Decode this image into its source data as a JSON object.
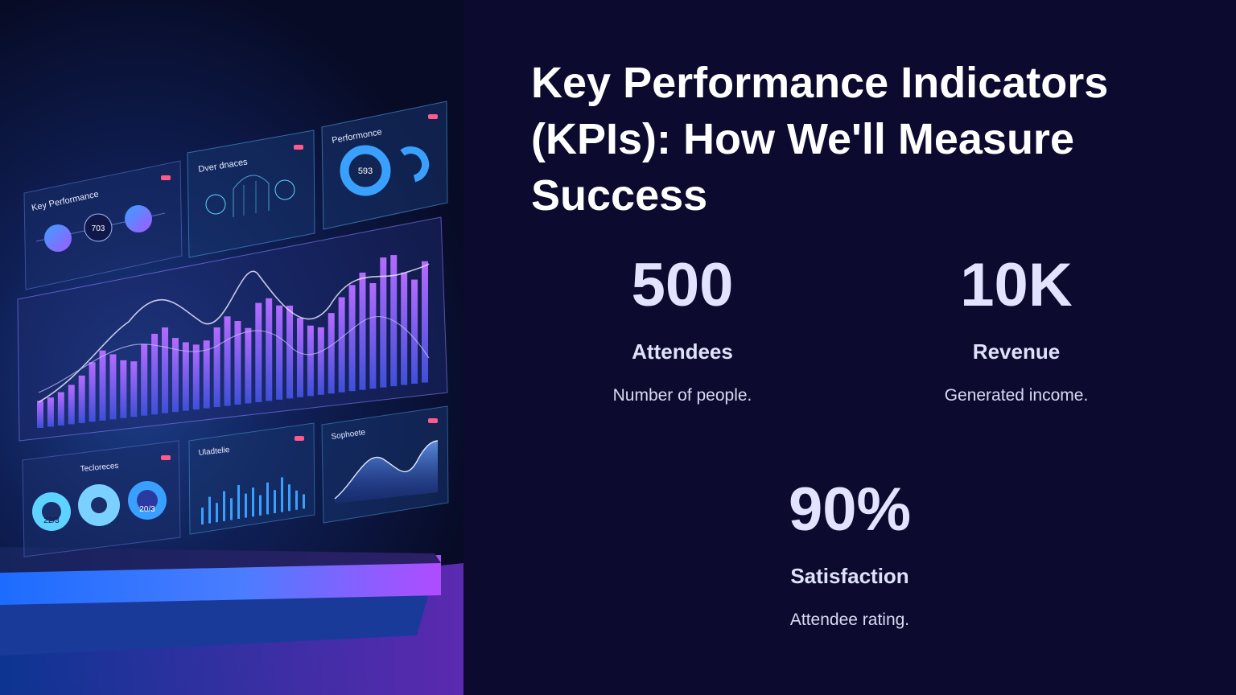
{
  "slide": {
    "title": "Key Performance Indicators (KPIs): How We'll Measure Success"
  },
  "kpis": [
    {
      "value": "500",
      "label": "Attendees",
      "description": "Number of people."
    },
    {
      "value": "10K",
      "label": "Revenue",
      "description": "Generated income."
    },
    {
      "value": "90%",
      "label": "Satisfaction",
      "description": "Attendee rating."
    }
  ],
  "illustration": {
    "panels": {
      "key_performance": {
        "title": "Key Performance",
        "center_value": "703"
      },
      "overview": {
        "title": "Dver dnaces"
      },
      "performance": {
        "title": "Performonce",
        "center_value": "593"
      },
      "techniques": {
        "title": "Tecloreces",
        "values": [
          "22/3",
          "20/3"
        ]
      },
      "uladtelie": {
        "title": "Uladtelie"
      },
      "sophoete": {
        "title": "Sophoete"
      }
    },
    "colors": {
      "accent_purple": "#a259ff",
      "accent_blue": "#3aa0ff",
      "accent_cyan": "#5fd3ff",
      "badge_pink": "#ff5a8a"
    }
  }
}
